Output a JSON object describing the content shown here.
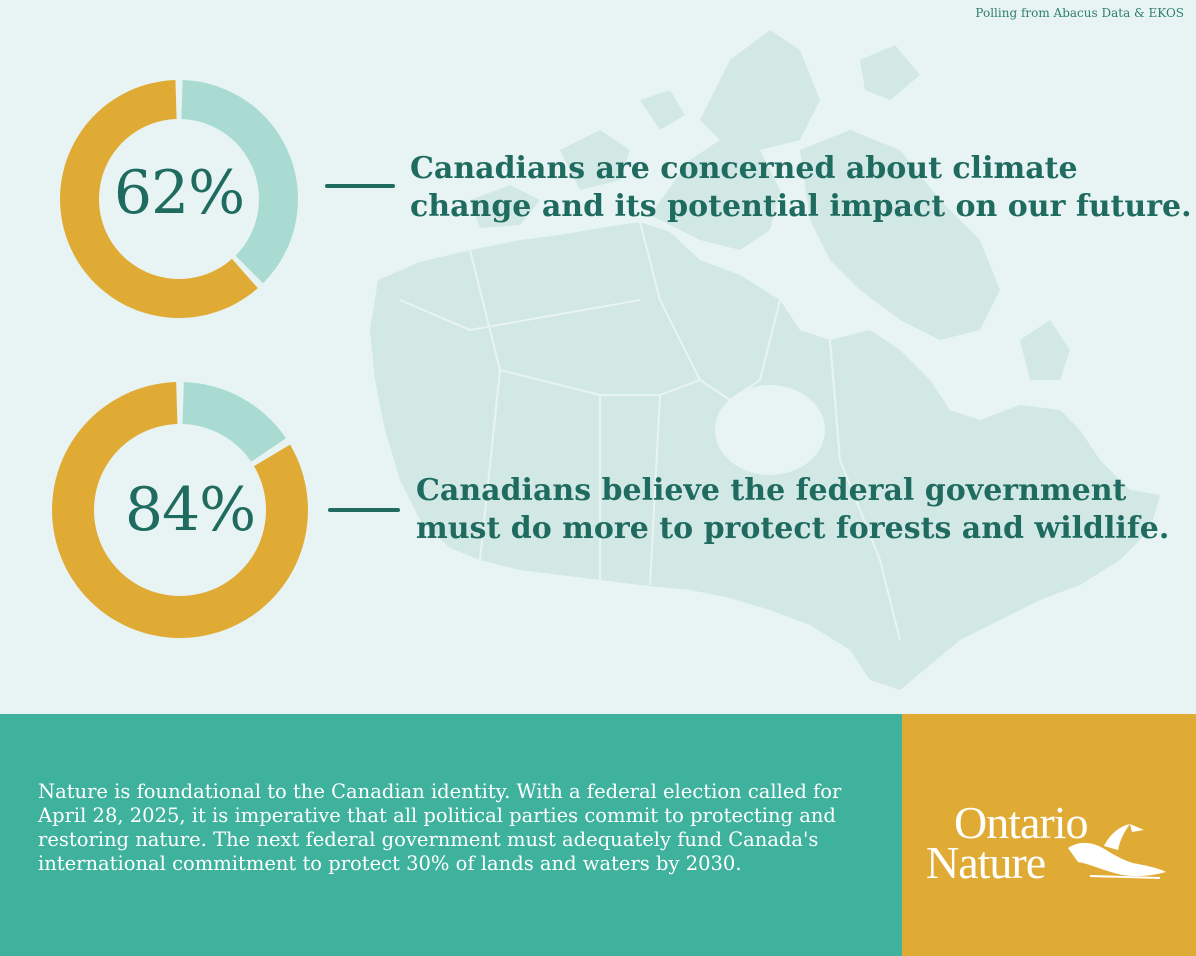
{
  "source_note": "Polling from Abacus Data & EKOS",
  "colors": {
    "background": "#e8f4f3",
    "map": "#d2e8e5",
    "gold": "#e0ab34",
    "mint": "#a9dbd2",
    "teal_dark": "#1f6b60",
    "teal_panel": "#3fb29d"
  },
  "chart_data": [
    {
      "type": "pie",
      "values": [
        62,
        38
      ],
      "display_value": "62%",
      "caption_lines": [
        "Canadians are concerned about climate",
        "change and its potential impact on our future."
      ]
    },
    {
      "type": "pie",
      "values": [
        84,
        16
      ],
      "display_value": "84%",
      "caption_lines": [
        "Canadians believe the federal government",
        "must do more to protect forests and wildlife."
      ]
    }
  ],
  "body_text": "Nature is foundational to the Canadian identity. With a federal election called for April 28, 2025, it is imperative that all political parties commit to protecting and restoring nature. The next federal government must adequately fund Canada's international commitment to protect 30% of lands and waters by 2030.",
  "logo": {
    "line1": "Ontario",
    "line2": "Nature",
    "icon": "loon-icon"
  }
}
